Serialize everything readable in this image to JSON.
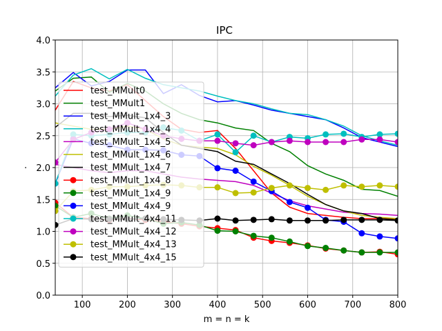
{
  "chart_data": {
    "type": "line",
    "title": "IPC",
    "xlabel": "m = n = k",
    "ylabel": ".",
    "xlim": [
      40,
      800
    ],
    "ylim": [
      0.0,
      4.0
    ],
    "xticks": [
      100,
      200,
      300,
      400,
      500,
      600,
      700,
      800
    ],
    "yticks": [
      0.0,
      0.5,
      1.0,
      1.5,
      2.0,
      2.5,
      3.0,
      3.5,
      4.0
    ],
    "ytick_labels": [
      "0.0",
      "0.5",
      "1.0",
      "1.5",
      "2.0",
      "2.5",
      "3.0",
      "3.5",
      "4.0"
    ],
    "grid": true,
    "legend_position": "left",
    "x": [
      40,
      80,
      120,
      160,
      200,
      240,
      280,
      320,
      360,
      400,
      440,
      480,
      520,
      560,
      600,
      640,
      680,
      720,
      760,
      800
    ],
    "series": [
      {
        "name": "test_MMult0",
        "color": "#ff0000",
        "marker": false,
        "values": [
          2.9,
          3.35,
          3.25,
          3.2,
          3.3,
          3.05,
          2.8,
          2.6,
          2.55,
          2.58,
          2.3,
          1.95,
          1.6,
          1.38,
          1.28,
          1.25,
          1.22,
          1.2,
          1.2,
          1.2
        ]
      },
      {
        "name": "test_MMult1",
        "color": "#008000",
        "marker": false,
        "values": [
          3.2,
          3.4,
          3.42,
          3.18,
          3.32,
          3.2,
          3.0,
          2.85,
          2.75,
          2.7,
          2.62,
          2.58,
          2.38,
          2.25,
          2.03,
          1.9,
          1.8,
          1.66,
          1.64,
          1.55
        ]
      },
      {
        "name": "test_MMult_1x4_3",
        "color": "#0000ff",
        "marker": false,
        "values": [
          3.25,
          3.49,
          3.28,
          3.35,
          3.53,
          3.53,
          3.16,
          3.3,
          3.13,
          3.03,
          3.05,
          2.98,
          2.9,
          2.85,
          2.8,
          2.75,
          2.62,
          2.47,
          2.4,
          2.33
        ]
      },
      {
        "name": "test_MMult_1x4_4",
        "color": "#00bfbf",
        "marker": false,
        "values": [
          3.12,
          3.45,
          3.55,
          3.39,
          3.54,
          3.4,
          3.3,
          3.25,
          3.2,
          3.12,
          3.05,
          3.0,
          2.92,
          2.85,
          2.83,
          2.75,
          2.65,
          2.5,
          2.42,
          2.35
        ]
      },
      {
        "name": "test_MMult_1x4_5",
        "color": "#bf00bf",
        "marker": false,
        "values": [
          2.05,
          2.0,
          1.95,
          1.92,
          1.95,
          1.95,
          1.9,
          1.85,
          1.82,
          1.8,
          1.78,
          1.72,
          1.6,
          1.48,
          1.4,
          1.35,
          1.3,
          1.28,
          1.27,
          1.25
        ]
      },
      {
        "name": "test_MMult_1x4_6",
        "color": "#bfbf00",
        "marker": false,
        "values": [
          2.7,
          2.65,
          2.6,
          2.6,
          2.65,
          2.6,
          2.45,
          2.35,
          2.32,
          2.3,
          2.2,
          2.02,
          1.88,
          1.72,
          1.55,
          1.42,
          1.32,
          1.25,
          1.22,
          1.2
        ]
      },
      {
        "name": "test_MMult_1x4_7",
        "color": "#000000",
        "marker": false,
        "values": [
          2.63,
          2.85,
          2.85,
          2.8,
          2.82,
          2.78,
          2.55,
          2.35,
          2.3,
          2.25,
          2.1,
          2.05,
          1.9,
          1.75,
          1.58,
          1.42,
          1.32,
          1.28,
          1.2,
          1.18
        ]
      },
      {
        "name": "test_MMult_1x4_8",
        "color": "#ff0000",
        "marker": true,
        "values": [
          1.45,
          1.22,
          1.2,
          1.18,
          1.2,
          1.18,
          1.15,
          1.12,
          1.08,
          1.05,
          1.02,
          0.9,
          0.85,
          0.82,
          0.78,
          0.73,
          0.7,
          0.67,
          0.68,
          0.64
        ]
      },
      {
        "name": "test_MMult_1x4_9",
        "color": "#008000",
        "marker": true,
        "values": [
          1.4,
          1.22,
          1.28,
          1.2,
          1.25,
          1.2,
          1.12,
          1.14,
          1.1,
          1.01,
          1.0,
          0.93,
          0.9,
          0.84,
          0.77,
          0.74,
          0.7,
          0.67,
          0.67,
          0.67
        ]
      },
      {
        "name": "test_MMult_4x4_9",
        "color": "#0000ff",
        "marker": true,
        "values": [
          1.75,
          2.45,
          2.38,
          2.35,
          2.28,
          2.28,
          2.27,
          2.2,
          2.18,
          1.99,
          1.95,
          1.78,
          1.63,
          1.46,
          1.37,
          1.18,
          1.15,
          0.97,
          0.92,
          0.89
        ]
      },
      {
        "name": "test_MMult_4x4_11",
        "color": "#00bfbf",
        "marker": true,
        "values": [
          1.75,
          2.52,
          2.5,
          2.52,
          2.55,
          2.55,
          2.63,
          2.58,
          2.42,
          2.52,
          2.24,
          2.5,
          2.4,
          2.48,
          2.46,
          2.52,
          2.53,
          2.48,
          2.52,
          2.53
        ]
      },
      {
        "name": "test_MMult_4x4_12",
        "color": "#bf00bf",
        "marker": true,
        "values": [
          2.08,
          2.44,
          2.55,
          2.6,
          2.7,
          2.6,
          2.5,
          2.45,
          2.42,
          2.42,
          2.38,
          2.35,
          2.4,
          2.42,
          2.4,
          2.4,
          2.4,
          2.44,
          2.44,
          2.4
        ]
      },
      {
        "name": "test_MMult_4x4_13",
        "color": "#bfbf00",
        "marker": true,
        "values": [
          1.32,
          1.63,
          1.65,
          1.7,
          1.7,
          1.72,
          1.73,
          1.72,
          1.69,
          1.69,
          1.6,
          1.61,
          1.68,
          1.72,
          1.68,
          1.65,
          1.72,
          1.7,
          1.72,
          1.7
        ]
      },
      {
        "name": "test_MMult_4x4_15",
        "color": "#000000",
        "marker": true,
        "values": [
          1.1,
          1.2,
          1.19,
          1.19,
          1.19,
          1.2,
          1.19,
          1.18,
          1.17,
          1.2,
          1.17,
          1.18,
          1.19,
          1.17,
          1.17,
          1.17,
          1.18,
          1.18,
          1.18,
          1.17
        ]
      }
    ]
  }
}
